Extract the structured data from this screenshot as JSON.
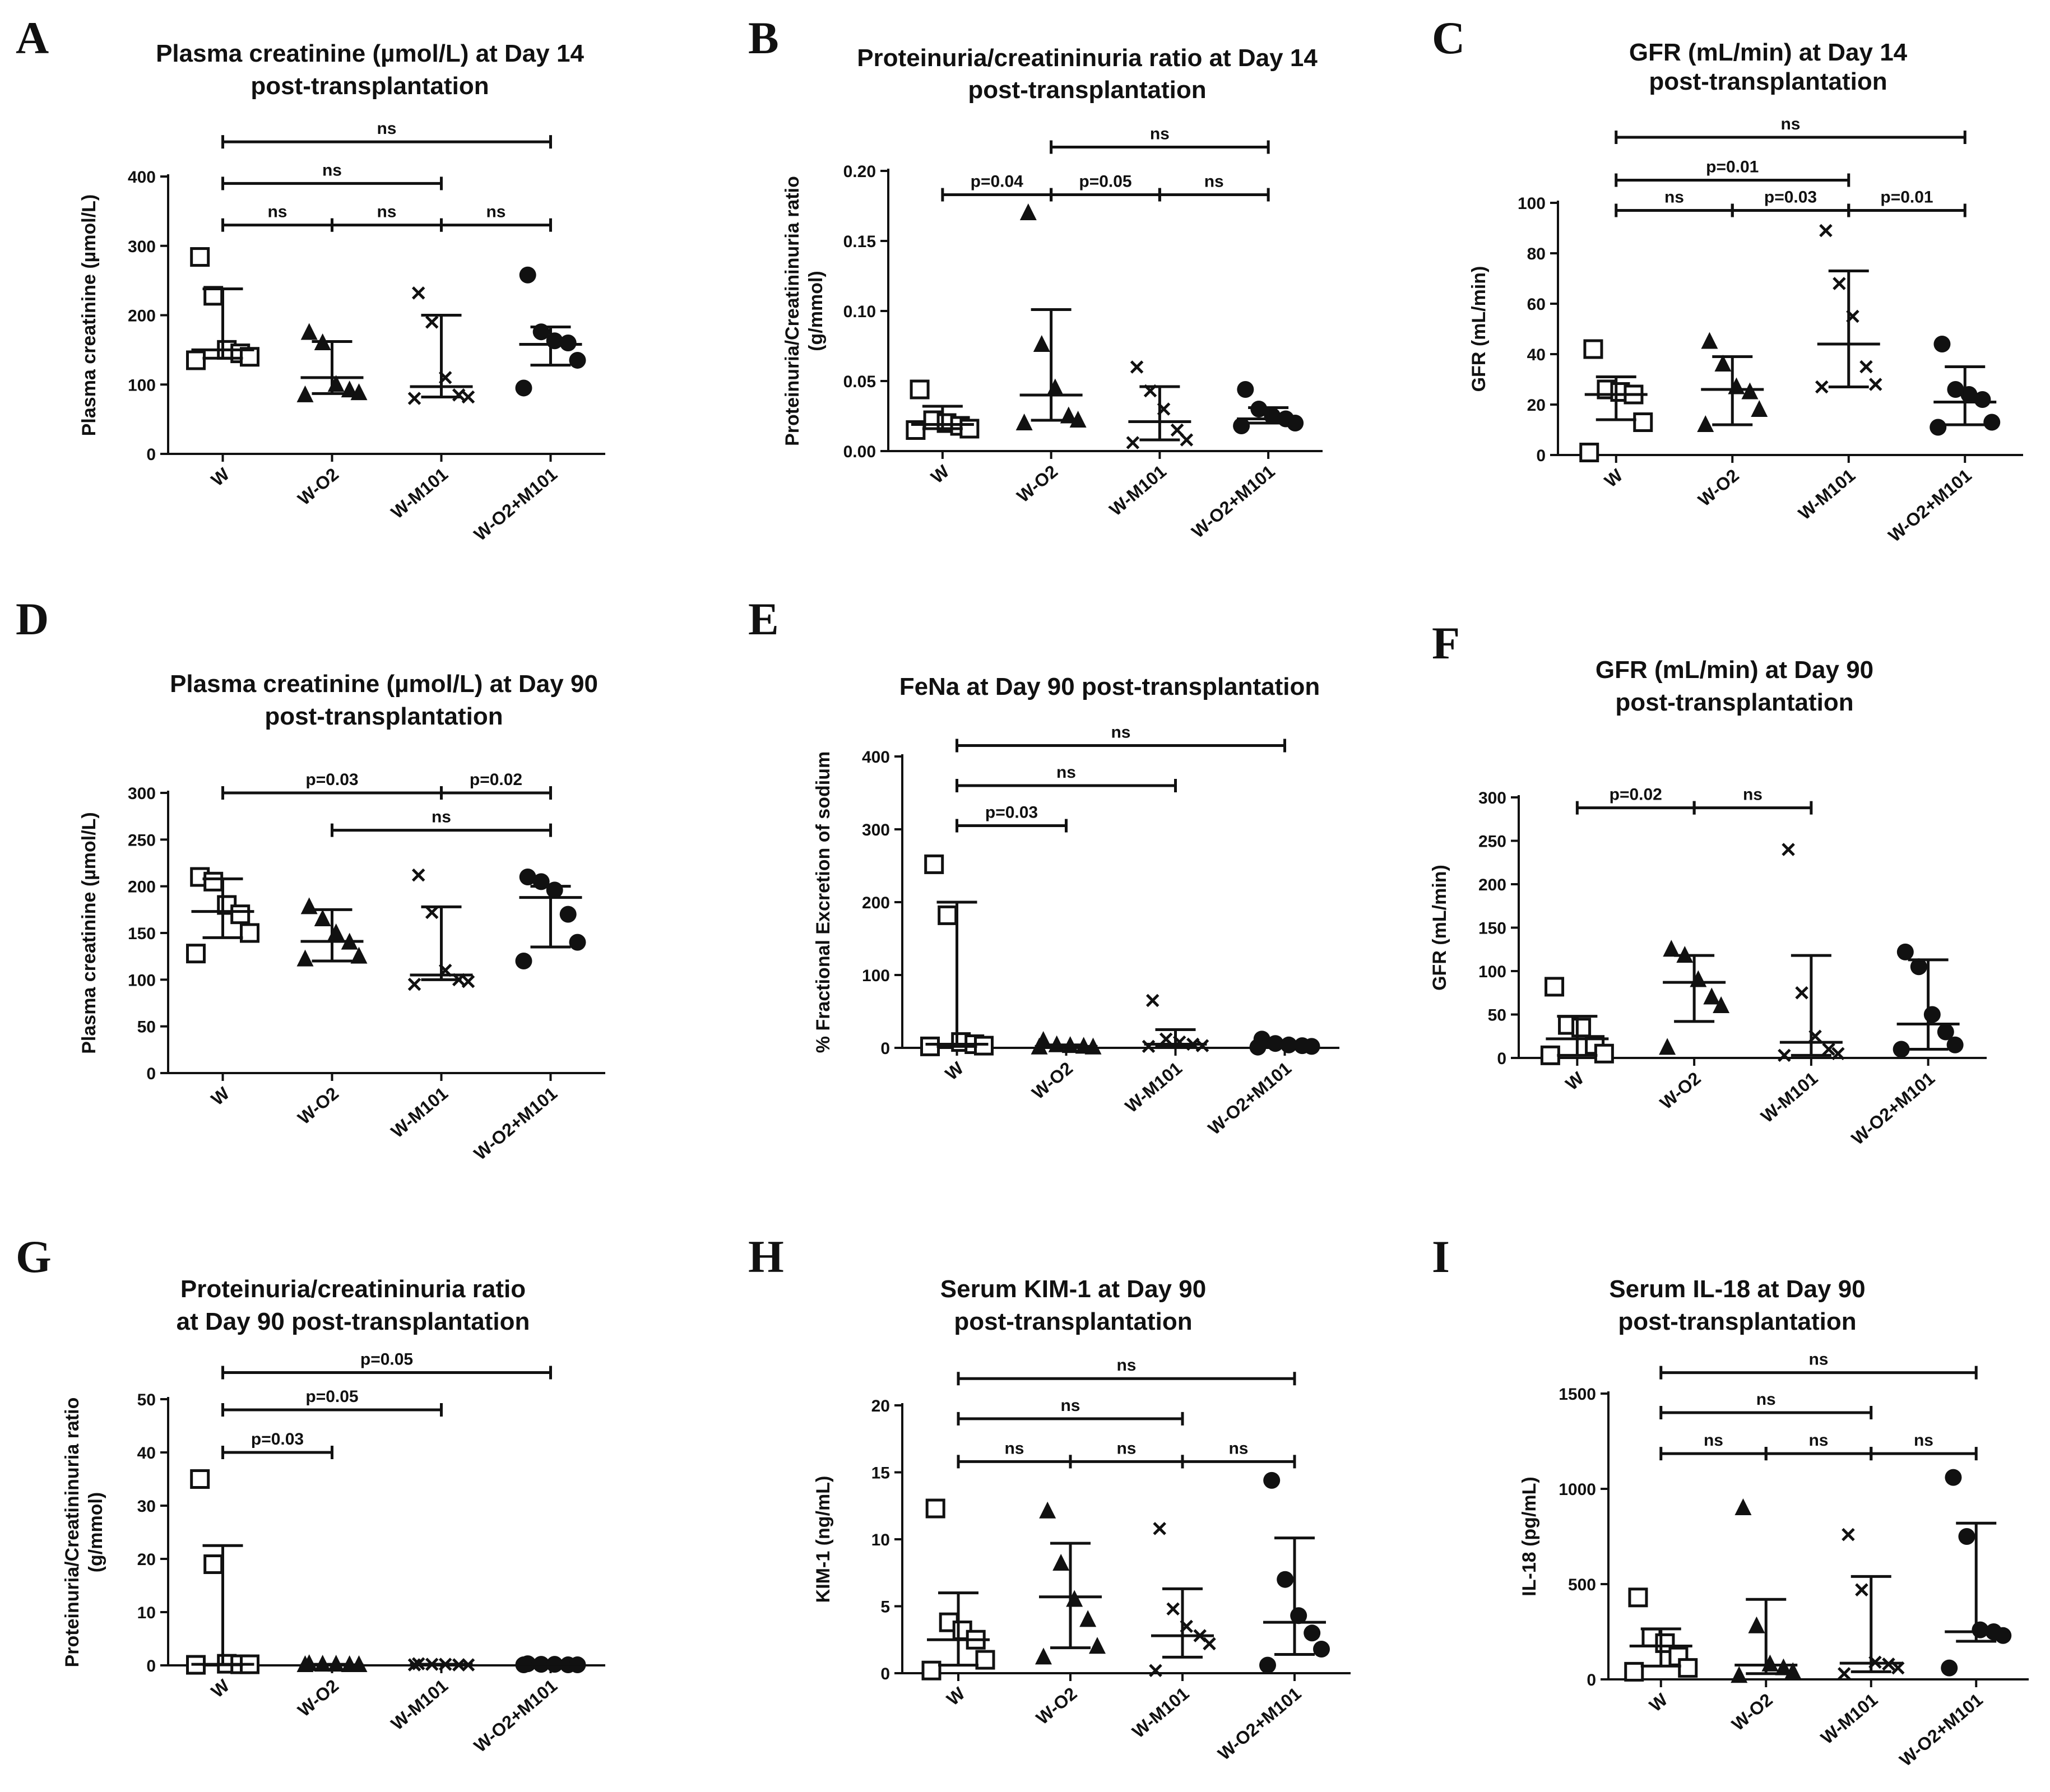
{
  "chart_data": [
    {
      "panel": "A",
      "type": "scatter",
      "title": [
        "Plasma creatinine (µmol/L) at Day 14",
        "post-transplantation"
      ],
      "ylabel": "Plasma creatinine (µmol/L)",
      "ylim": [
        0,
        400
      ],
      "yticks": [
        0,
        100,
        200,
        300,
        400
      ],
      "categories": [
        "W",
        "W-O2",
        "W-M101",
        "W-O2+M101"
      ],
      "markers": [
        "square-open",
        "triangle",
        "x",
        "circle"
      ],
      "points": [
        [
          284,
          228,
          150,
          145,
          140,
          135
        ],
        [
          175,
          160,
          100,
          92,
          88,
          85
        ],
        [
          232,
          190,
          110,
          85,
          82,
          80
        ],
        [
          258,
          176,
          163,
          160,
          135,
          95
        ]
      ],
      "median": [
        150,
        110,
        97,
        158
      ],
      "iqr": [
        [
          138,
          238
        ],
        [
          87,
          162
        ],
        [
          82,
          200
        ],
        [
          128,
          183
        ]
      ],
      "comparisons": [
        {
          "from": 0,
          "to": 3,
          "label": "ns",
          "y": 450
        },
        {
          "from": 0,
          "to": 2,
          "label": "ns",
          "y": 390
        },
        {
          "from": 0,
          "to": 1,
          "label": "ns",
          "y": 330
        },
        {
          "from": 1,
          "to": 2,
          "label": "ns",
          "y": 330
        },
        {
          "from": 2,
          "to": 3,
          "label": "ns",
          "y": 330
        }
      ]
    },
    {
      "panel": "B",
      "type": "scatter",
      "title": [
        "Proteinuria/creatininuria ratio at Day 14",
        "post-transplantation"
      ],
      "ylabel": [
        "Proteinuria/Creatininuria ratio",
        "(g/mmol)"
      ],
      "ylim": [
        0,
        0.2
      ],
      "yticks": [
        "0.00",
        "0.05",
        "0.10",
        "0.15",
        "0.20"
      ],
      "categories": [
        "W",
        "W-O2",
        "W-M101",
        "W-O2+M101"
      ],
      "markers": [
        "square-open",
        "triangle",
        "x",
        "circle"
      ],
      "points": [
        [
          0.044,
          0.022,
          0.02,
          0.018,
          0.016,
          0.015
        ],
        [
          0.17,
          0.076,
          0.045,
          0.025,
          0.022,
          0.02
        ],
        [
          0.06,
          0.043,
          0.03,
          0.015,
          0.008,
          0.006
        ],
        [
          0.044,
          0.03,
          0.025,
          0.023,
          0.02,
          0.018
        ]
      ],
      "median": [
        0.019,
        0.04,
        0.021,
        0.023
      ],
      "iqr": [
        [
          0.016,
          0.032
        ],
        [
          0.022,
          0.101
        ],
        [
          0.008,
          0.046
        ],
        [
          0.02,
          0.031
        ]
      ],
      "comparisons": [
        {
          "from": 1,
          "to": 3,
          "label": "ns",
          "y": 0.217
        },
        {
          "from": 0,
          "to": 1,
          "label": "p=0.04",
          "y": 0.183
        },
        {
          "from": 1,
          "to": 2,
          "label": "p=0.05",
          "y": 0.183
        },
        {
          "from": 2,
          "to": 3,
          "label": "ns",
          "y": 0.183
        }
      ]
    },
    {
      "panel": "C",
      "type": "scatter",
      "title": [
        "GFR (mL/min) at Day 14",
        "post-transplantation"
      ],
      "ylabel": "GFR (mL/min)",
      "ylim": [
        0,
        100
      ],
      "yticks": [
        0,
        20,
        40,
        60,
        80,
        100
      ],
      "categories": [
        "W",
        "W-O2",
        "W-M101",
        "W-O2+M101"
      ],
      "markers": [
        "square-open",
        "triangle",
        "x",
        "circle"
      ],
      "points": [
        [
          42,
          26,
          25,
          24,
          13,
          1
        ],
        [
          45,
          36,
          27,
          25,
          18,
          12
        ],
        [
          89,
          68,
          55,
          35,
          28,
          27
        ],
        [
          44,
          26,
          24,
          22,
          13,
          11
        ]
      ],
      "median": [
        24,
        26,
        44,
        21
      ],
      "iqr": [
        [
          14,
          31
        ],
        [
          12,
          39
        ],
        [
          27,
          73
        ],
        [
          12,
          35
        ]
      ],
      "comparisons": [
        {
          "from": 0,
          "to": 3,
          "label": "ns",
          "y": 126
        },
        {
          "from": 0,
          "to": 2,
          "label": "p=0.01",
          "y": 109
        },
        {
          "from": 0,
          "to": 1,
          "label": "ns",
          "y": 97
        },
        {
          "from": 1,
          "to": 2,
          "label": "p=0.03",
          "y": 97
        },
        {
          "from": 2,
          "to": 3,
          "label": "p=0.01",
          "y": 97
        }
      ]
    },
    {
      "panel": "D",
      "type": "scatter",
      "title": [
        "Plasma creatinine (µmol/L) at Day 90",
        "post-transplantation"
      ],
      "ylabel": "Plasma creatinine (µmol/L)",
      "ylim": [
        0,
        300
      ],
      "yticks": [
        0,
        50,
        100,
        150,
        200,
        250,
        300
      ],
      "categories": [
        "W",
        "W-O2",
        "W-M101",
        "W-O2+M101"
      ],
      "markers": [
        "square-open",
        "triangle",
        "x",
        "circle"
      ],
      "points": [
        [
          210,
          205,
          180,
          170,
          150,
          128
        ],
        [
          178,
          165,
          150,
          140,
          125,
          122
        ],
        [
          212,
          172,
          110,
          100,
          98,
          95
        ],
        [
          210,
          205,
          196,
          170,
          140,
          120
        ]
      ],
      "median": [
        173,
        141,
        105,
        188
      ],
      "iqr": [
        [
          145,
          208
        ],
        [
          120,
          175
        ],
        [
          100,
          178
        ],
        [
          135,
          200
        ]
      ],
      "comparisons": [
        {
          "from": 0,
          "to": 2,
          "label": "p=0.03",
          "y": 300
        },
        {
          "from": 2,
          "to": 3,
          "label": "p=0.02",
          "y": 300
        },
        {
          "from": 1,
          "to": 3,
          "label": "ns",
          "y": 260
        }
      ]
    },
    {
      "panel": "E",
      "type": "scatter",
      "title": [
        "FeNa at Day 90 post-transplantation"
      ],
      "ylabel": "% Fractional Excretion of sodium",
      "ylim": [
        0,
        400
      ],
      "yticks": [
        0,
        100,
        200,
        300,
        400
      ],
      "categories": [
        "W",
        "W-O2",
        "W-M101",
        "W-O2+M101"
      ],
      "markers": [
        "square-open",
        "triangle",
        "x",
        "circle"
      ],
      "points": [
        [
          252,
          182,
          8,
          5,
          3,
          2
        ],
        [
          10,
          4,
          3,
          2,
          1,
          1
        ],
        [
          65,
          12,
          8,
          5,
          3,
          2
        ],
        [
          12,
          6,
          4,
          3,
          2,
          1
        ]
      ],
      "median": [
        5,
        2,
        5,
        3
      ],
      "iqr": [
        [
          2,
          200
        ],
        [
          1,
          4
        ],
        [
          2,
          25
        ],
        [
          1,
          6
        ]
      ],
      "comparisons": [
        {
          "from": 0,
          "to": 3,
          "label": "ns",
          "y": 415
        },
        {
          "from": 0,
          "to": 2,
          "label": "ns",
          "y": 360
        },
        {
          "from": 0,
          "to": 1,
          "label": "p=0.03",
          "y": 305
        }
      ]
    },
    {
      "panel": "F",
      "type": "scatter",
      "title": [
        "GFR (mL/min) at Day 90",
        "post-transplantation"
      ],
      "ylabel": "GFR (mL/min)",
      "ylim": [
        0,
        300
      ],
      "yticks": [
        0,
        50,
        100,
        150,
        200,
        250,
        300
      ],
      "categories": [
        "W",
        "W-O2",
        "W-M101",
        "W-O2+M101"
      ],
      "markers": [
        "square-open",
        "triangle",
        "x",
        "circle"
      ],
      "points": [
        [
          82,
          38,
          35,
          15,
          5,
          3
        ],
        [
          125,
          118,
          90,
          70,
          60,
          12
        ],
        [
          240,
          75,
          25,
          10,
          5,
          3
        ],
        [
          122,
          105,
          50,
          30,
          15,
          10
        ]
      ],
      "median": [
        22,
        87,
        18,
        39
      ],
      "iqr": [
        [
          3,
          48
        ],
        [
          42,
          118
        ],
        [
          3,
          118
        ],
        [
          10,
          113
        ]
      ],
      "comparisons": [
        {
          "from": 0,
          "to": 1,
          "label": "p=0.02",
          "y": 288
        },
        {
          "from": 1,
          "to": 2,
          "label": "ns",
          "y": 288
        }
      ]
    },
    {
      "panel": "G",
      "type": "scatter",
      "title": [
        "Proteinuria/creatininuria ratio",
        "at Day 90 post-transplantation"
      ],
      "ylabel": [
        "Proteinuria/Creatininuria ratio",
        "(g/mmol)"
      ],
      "ylim": [
        0,
        50
      ],
      "yticks": [
        0,
        10,
        20,
        30,
        40,
        50
      ],
      "categories": [
        "W",
        "W-O2",
        "W-M101",
        "W-O2+M101"
      ],
      "markers": [
        "square-open",
        "triangle",
        "x",
        "circle"
      ],
      "points": [
        [
          35,
          19,
          0.3,
          0.2,
          0.2,
          0.1
        ],
        [
          0.3,
          0.2,
          0.2,
          0.1,
          0.1,
          0.1
        ],
        [
          0.3,
          0.2,
          0.2,
          0.1,
          0.1,
          0.1
        ],
        [
          0.3,
          0.2,
          0.2,
          0.1,
          0.1,
          0.1
        ]
      ],
      "median": [
        0.2,
        0.1,
        0.2,
        0.2
      ],
      "iqr": [
        [
          0.1,
          22.5
        ],
        [
          0.1,
          0.2
        ],
        [
          0.1,
          0.2
        ],
        [
          0.1,
          0.2
        ]
      ],
      "comparisons": [
        {
          "from": 0,
          "to": 3,
          "label": "p=0.05",
          "y": 55
        },
        {
          "from": 0,
          "to": 2,
          "label": "p=0.05",
          "y": 48
        },
        {
          "from": 0,
          "to": 1,
          "label": "p=0.03",
          "y": 40
        }
      ]
    },
    {
      "panel": "H",
      "type": "scatter",
      "title": [
        "Serum KIM-1 at Day 90",
        "post-transplantation"
      ],
      "ylabel": "KIM-1 (ng/mL)",
      "ylim": [
        0,
        20
      ],
      "yticks": [
        0,
        5,
        10,
        15,
        20
      ],
      "categories": [
        "W",
        "W-O2",
        "W-M101",
        "W-O2+M101"
      ],
      "markers": [
        "square-open",
        "triangle",
        "x",
        "circle"
      ],
      "points": [
        [
          12.3,
          3.8,
          3.2,
          2.5,
          1.0,
          0.2
        ],
        [
          12.1,
          8.2,
          5.5,
          4.0,
          2.0,
          1.2
        ],
        [
          10.8,
          4.8,
          3.5,
          2.8,
          2.2,
          0.2
        ],
        [
          14.4,
          7.0,
          4.3,
          3.0,
          1.8,
          0.6
        ]
      ],
      "median": [
        2.5,
        5.7,
        2.8,
        3.8
      ],
      "iqr": [
        [
          0.6,
          6.0
        ],
        [
          1.9,
          9.7
        ],
        [
          1.2,
          6.3
        ],
        [
          1.4,
          10.1
        ]
      ],
      "comparisons": [
        {
          "from": 0,
          "to": 3,
          "label": "ns",
          "y": 22
        },
        {
          "from": 0,
          "to": 2,
          "label": "ns",
          "y": 19
        },
        {
          "from": 0,
          "to": 1,
          "label": "ns",
          "y": 15.8
        },
        {
          "from": 1,
          "to": 2,
          "label": "ns",
          "y": 15.8
        },
        {
          "from": 2,
          "to": 3,
          "label": "ns",
          "y": 15.8
        }
      ]
    },
    {
      "panel": "I",
      "type": "scatter",
      "title": [
        "Serum IL-18 at Day 90",
        "post-transplantation"
      ],
      "ylabel": "IL-18 (pg/mL)",
      "ylim": [
        0,
        1500
      ],
      "yticks": [
        0,
        500,
        1000,
        1500
      ],
      "categories": [
        "W",
        "W-O2",
        "W-M101",
        "W-O2+M101"
      ],
      "markers": [
        "square-open",
        "triangle",
        "x",
        "circle"
      ],
      "points": [
        [
          430,
          220,
          190,
          120,
          60,
          40
        ],
        [
          900,
          280,
          80,
          60,
          40,
          20
        ],
        [
          760,
          470,
          90,
          80,
          60,
          30
        ],
        [
          1060,
          750,
          260,
          250,
          230,
          60
        ]
      ],
      "median": [
        175,
        75,
        85,
        250
      ],
      "iqr": [
        [
          70,
          265
        ],
        [
          30,
          420
        ],
        [
          40,
          540
        ],
        [
          200,
          820
        ]
      ],
      "comparisons": [
        {
          "from": 0,
          "to": 3,
          "label": "ns",
          "y": 1610
        },
        {
          "from": 0,
          "to": 2,
          "label": "ns",
          "y": 1400
        },
        {
          "from": 0,
          "to": 1,
          "label": "ns",
          "y": 1185
        },
        {
          "from": 1,
          "to": 2,
          "label": "ns",
          "y": 1185
        },
        {
          "from": 2,
          "to": 3,
          "label": "ns",
          "y": 1185
        }
      ]
    }
  ]
}
